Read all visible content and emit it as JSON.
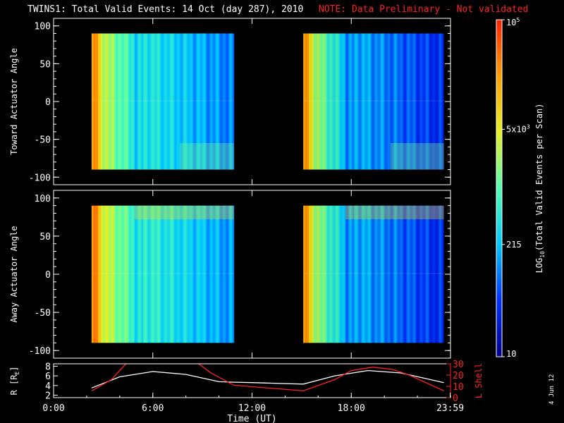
{
  "header": {
    "title": "TWINS1: Total Valid Events: 14 Oct (day 287), 2010",
    "note": "NOTE: Data Preliminary - Not validated",
    "note_color": "#ff2020"
  },
  "stamp": "4 Jun 12",
  "chart_data": [
    {
      "type": "heatmap",
      "ylabel": "Toward Actuator Angle",
      "ylim": [
        -110,
        110
      ],
      "yticks": [
        "100",
        "50",
        "0",
        "-50",
        "-100"
      ],
      "xlim_hours": [
        0,
        24
      ],
      "data_blocks_hours": [
        [
          2.3,
          10.9
        ],
        [
          15.1,
          23.6
        ]
      ],
      "angle_range": [
        -90,
        90
      ],
      "levels": "LOG10 counts per scan, from ~10 (dark blue) to ~10^5 (red); start of each block yellow/orange, decreasing to blue"
    },
    {
      "type": "heatmap",
      "ylabel": "Away Actuator Angle",
      "ylim": [
        -110,
        110
      ],
      "yticks": [
        "100",
        "50",
        "0",
        "-50",
        "-100"
      ],
      "xlim_hours": [
        0,
        24
      ],
      "data_blocks_hours": [
        [
          2.3,
          10.9
        ],
        [
          15.1,
          23.6
        ]
      ],
      "angle_range": [
        -90,
        90
      ]
    },
    {
      "type": "line",
      "ylabel_left": "R [R",
      "ylabel_left_sub": "E",
      "ylabel_left_end": "]",
      "ylabel_right": "L Shell",
      "ylim_left": [
        1.5,
        8.5
      ],
      "yticks_left": [
        "8",
        "6",
        "4",
        "2"
      ],
      "ylim_right": [
        0,
        30
      ],
      "yticks_right": [
        "30",
        "20",
        "10",
        "0"
      ],
      "xticks": [
        "0:00",
        "6:00",
        "12:00",
        "18:00",
        "23:59"
      ],
      "xlabel": "Time (UT)",
      "series": [
        {
          "axis": "left",
          "color": "#ffffff",
          "x": [
            2.3,
            4,
            6,
            8,
            10,
            10.9,
            12,
            14,
            15.1,
            17,
            19,
            21,
            23.6
          ],
          "y": [
            3.5,
            5.8,
            6.9,
            6.3,
            4.8,
            4.7,
            4.6,
            4.4,
            4.3,
            6.0,
            7.1,
            6.6,
            4.6
          ]
        },
        {
          "axis": "right",
          "color": "#ff2020",
          "x": [
            2.3,
            3.5,
            4.5,
            8.6,
            9.5,
            10.9,
            15.1,
            17,
            18,
            19.3,
            20.5,
            21.5,
            23.6
          ],
          "y": [
            6,
            16,
            32,
            32,
            22,
            11,
            6,
            16,
            24,
            27,
            25,
            20,
            6
          ]
        }
      ]
    }
  ],
  "colorbar": {
    "label_pre": "LOG",
    "label_sub": "10",
    "label_post": "(Total Valid Events per Scan)",
    "labels": [
      {
        "mantissa": "10",
        "exp": "5",
        "value": 100000
      },
      {
        "mantissa": "5x10",
        "exp": "3",
        "value": 5000
      },
      {
        "mantissa": "215",
        "exp": "",
        "value": 215
      },
      {
        "mantissa": "10",
        "exp": "",
        "value": 10
      }
    ],
    "range": [
      10,
      100000
    ],
    "colors": [
      "#00008c",
      "#0030ff",
      "#00c8ff",
      "#50ffb0",
      "#e8f020",
      "#ffa000",
      "#ff1e00"
    ]
  }
}
